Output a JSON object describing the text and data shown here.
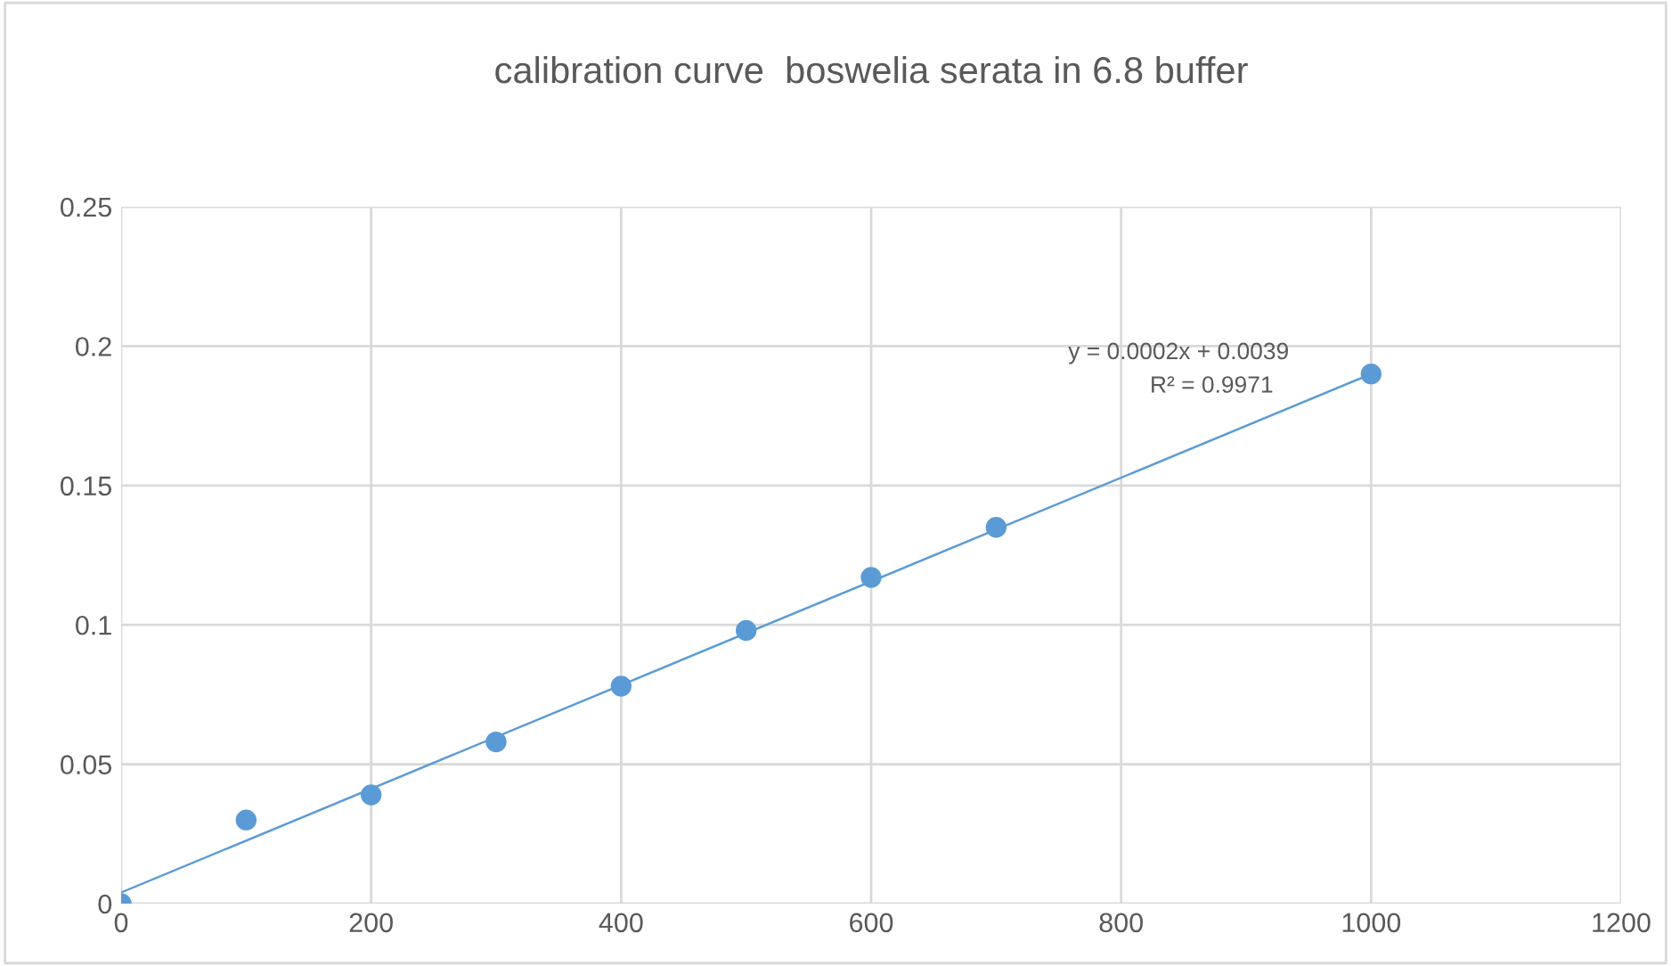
{
  "chart_data": {
    "type": "scatter",
    "title": "calibration curve  boswelia serata in 6.8 buffer",
    "series": [
      {
        "color": "#5b9bd5",
        "x": [
          0,
          100,
          200,
          300,
          400,
          500,
          600,
          700,
          1000
        ],
        "values": [
          0,
          0.03,
          0.039,
          0.058,
          0.078,
          0.098,
          0.117,
          0.135,
          0.19
        ]
      },
      {
        "type": "line",
        "marker": "none",
        "color": "#5b9bd5",
        "x": [
          0,
          1000
        ],
        "values": [
          0.004,
          0.19
        ]
      }
    ],
    "annotations": [
      "y = 0.0002x + 0.0039",
      "R² = 0.9971"
    ],
    "xlim": [
      0,
      1200
    ],
    "xticks": [
      0,
      200,
      400,
      600,
      800,
      1000,
      1200
    ],
    "ylim": [
      0,
      0.25
    ],
    "yticks": [
      0,
      0.05,
      0.1,
      0.15,
      0.2,
      0.25
    ],
    "grid": true,
    "marker": "circle"
  }
}
